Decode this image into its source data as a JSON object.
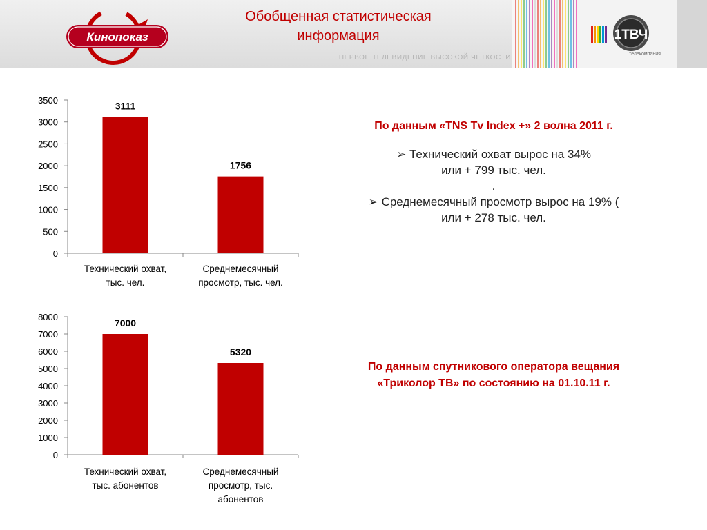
{
  "header": {
    "title_line1": "Обобщенная статистическая",
    "title_line2": "информация",
    "subtitle": "ПЕРВОЕ ТЕЛЕВИДЕНИЕ ВЫСОКОЙ ЧЕТКОСТИ",
    "logo_left_text": "Кинопоказ",
    "logo_right_text": "1ТВЧ",
    "logo_right_subtext": "телекомпания"
  },
  "right_panel": {
    "tns_heading": "По данным «TNS Tv Index +» 2 волна 2011 г.",
    "bullet1_line1": "Технический охват вырос на 34%",
    "bullet1_line2": "или + 799 тыс. чел.",
    "dot_line": ".",
    "bullet2_line1": "Среднемесячный просмотр вырос на 19% (",
    "bullet2_line2": "или + 278 тыс. чел.",
    "tricolor_line1": "По данным спутникового оператора вещания",
    "tricolor_line2": "«Триколор ТВ» по состоянию на 01.10.11 г."
  },
  "colors": {
    "brand_red": "#c00000",
    "bar_red": "#c00000"
  },
  "chart_data": [
    {
      "type": "bar",
      "categories": [
        [
          "Технический охват,",
          "тыс. чел."
        ],
        [
          "Среднемесячный",
          "просмотр, тыс. чел."
        ]
      ],
      "values": [
        3111,
        1756
      ],
      "data_labels": [
        "3111",
        "1756"
      ],
      "ylim": [
        0,
        3500
      ],
      "yticks": [
        0,
        500,
        1000,
        1500,
        2000,
        2500,
        3000,
        3500
      ],
      "color": "#c00000",
      "grid": false,
      "legend": "none"
    },
    {
      "type": "bar",
      "categories": [
        [
          "Технический охват,",
          "тыс. абонентов"
        ],
        [
          "Среднемесячный",
          "просмотр, тыс.",
          "абонентов"
        ]
      ],
      "values": [
        7000,
        5320
      ],
      "data_labels": [
        "7000",
        "5320"
      ],
      "ylim": [
        0,
        8000
      ],
      "yticks": [
        0,
        1000,
        2000,
        3000,
        4000,
        5000,
        6000,
        7000,
        8000
      ],
      "color": "#c00000",
      "grid": false,
      "legend": "none"
    }
  ]
}
